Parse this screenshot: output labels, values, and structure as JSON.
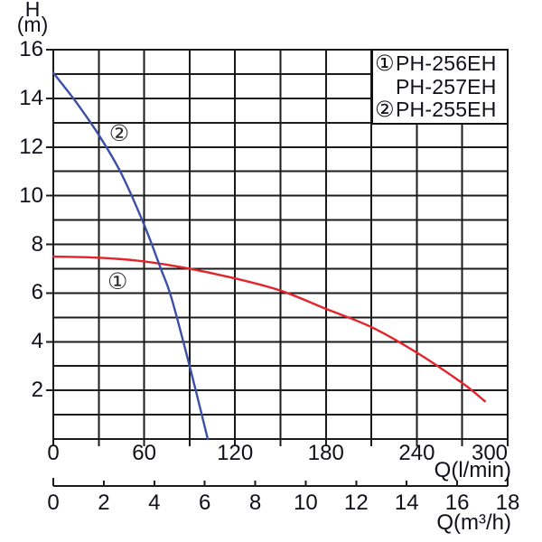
{
  "axis_titles": {
    "h_line1": "H",
    "h_line2": "(m)",
    "q_primary": "Q(l/min)",
    "q_secondary": "Q(m³/h)"
  },
  "legend": {
    "rows": [
      {
        "marker": "①",
        "label": "PH-256EH"
      },
      {
        "marker": "",
        "label": "PH-257EH"
      },
      {
        "marker": "②",
        "label": "PH-255EH"
      }
    ]
  },
  "colors": {
    "curve_red": "#e3242b",
    "curve_blue": "#3a4fa5",
    "grid": "#1b1b1b",
    "text": "#10101a",
    "background": "#ffffff"
  },
  "chart_data": {
    "type": "line",
    "title": "",
    "xlabel": "Q(l/min)",
    "xlabel_secondary": "Q(m³/h)",
    "ylabel": "H (m)",
    "x_axis_primary": {
      "unit": "l/min",
      "range": [
        0,
        300
      ],
      "tick_labels": [
        0,
        60,
        120,
        180,
        240,
        300
      ],
      "minor_step": 30
    },
    "x_axis_secondary": {
      "unit": "m³/h",
      "range": [
        0,
        18
      ],
      "tick_labels": [
        0,
        2,
        4,
        6,
        8,
        10,
        12,
        14,
        16,
        18
      ],
      "lmin_per_unit": 16.6667
    },
    "y_axis": {
      "unit": "m",
      "range": [
        0,
        16
      ],
      "tick_labels": [
        2,
        4,
        6,
        8,
        10,
        12,
        14,
        16
      ],
      "minor_step": 1
    },
    "grid": true,
    "legend_position": "top-right",
    "series": [
      {
        "name": "PH-256EH / PH-257EH",
        "marker": "①",
        "color": "#e3242b",
        "points_q_lmin_vs_h_m": [
          [
            0,
            7.5
          ],
          [
            30,
            7.45
          ],
          [
            60,
            7.3
          ],
          [
            90,
            7.0
          ],
          [
            120,
            6.6
          ],
          [
            150,
            6.1
          ],
          [
            180,
            5.35
          ],
          [
            210,
            4.6
          ],
          [
            240,
            3.55
          ],
          [
            270,
            2.3
          ],
          [
            285,
            1.55
          ]
        ]
      },
      {
        "name": "PH-255EH",
        "marker": "②",
        "color": "#3a4fa5",
        "points_q_lmin_vs_h_m": [
          [
            0,
            15.05
          ],
          [
            15,
            13.85
          ],
          [
            30,
            12.5
          ],
          [
            45,
            10.9
          ],
          [
            60,
            8.8
          ],
          [
            71,
            7.0
          ],
          [
            78,
            5.8
          ],
          [
            90,
            3.0
          ],
          [
            102,
            0
          ]
        ]
      }
    ],
    "annotations": [
      {
        "text": "②",
        "q": 43.5,
        "h": 12.55
      },
      {
        "text": "①",
        "q": 42.5,
        "h": 6.45
      }
    ]
  }
}
